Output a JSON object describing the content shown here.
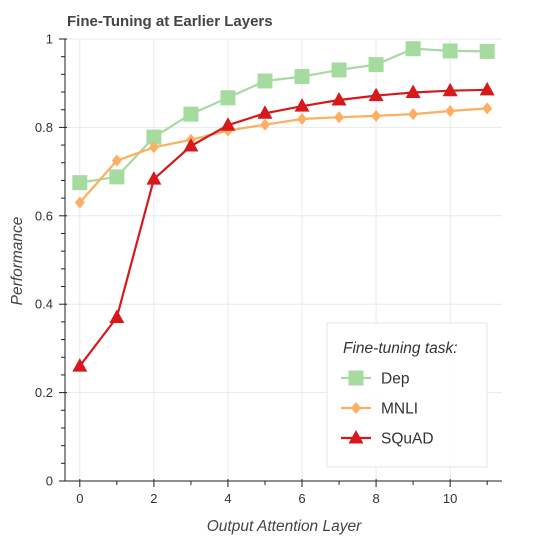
{
  "chart_data": {
    "type": "line",
    "title": "Fine-Tuning at Earlier Layers",
    "xlabel": "Output Attention Layer",
    "ylabel": "Performance",
    "xlim": [
      -0.4,
      11.4
    ],
    "ylim": [
      0,
      1
    ],
    "x_ticks": [
      0,
      2,
      4,
      6,
      8,
      10
    ],
    "x_tick_labels": [
      "0",
      "2",
      "4",
      "6",
      "8",
      "10"
    ],
    "y_ticks": [
      0,
      0.2,
      0.4,
      0.6,
      0.8,
      1
    ],
    "y_tick_labels": [
      "0",
      "0.2",
      "0.4",
      "0.6",
      "0.8",
      "1"
    ],
    "x": [
      0,
      1,
      2,
      3,
      4,
      5,
      6,
      7,
      8,
      9,
      10,
      11
    ],
    "legend": {
      "title": "Fine-tuning task:",
      "position": "bottom-right"
    },
    "series": [
      {
        "name": "Dep",
        "marker": "square",
        "color": "#a6dba0",
        "values": [
          0.675,
          0.688,
          0.778,
          0.83,
          0.867,
          0.905,
          0.915,
          0.93,
          0.942,
          0.978,
          0.973,
          0.972
        ]
      },
      {
        "name": "MNLI",
        "marker": "diamond",
        "color": "#fdae61",
        "values": [
          0.63,
          0.725,
          0.755,
          0.772,
          0.793,
          0.806,
          0.819,
          0.823,
          0.826,
          0.83,
          0.837,
          0.843
        ]
      },
      {
        "name": "SQuAD",
        "marker": "triangle",
        "color": "#d7191c",
        "values": [
          0.26,
          0.37,
          0.683,
          0.758,
          0.805,
          0.832,
          0.848,
          0.862,
          0.872,
          0.879,
          0.883,
          0.885
        ]
      }
    ],
    "grid": true
  }
}
